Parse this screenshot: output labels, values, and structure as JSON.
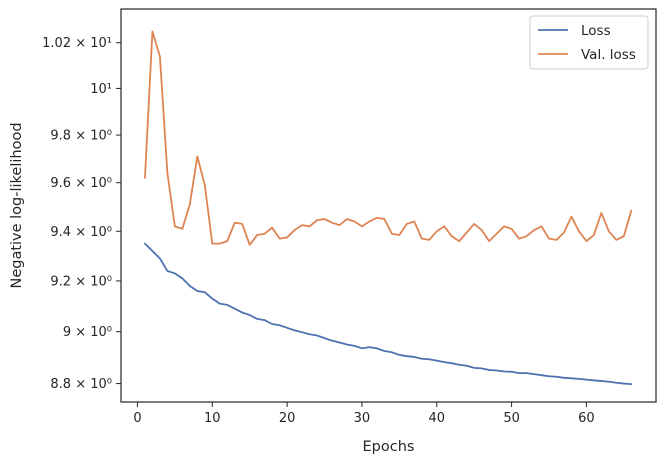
{
  "chart_data": {
    "type": "line",
    "xlabel": "Epochs",
    "ylabel": "Negative log-likelihood",
    "xlim": [
      -2.2,
      69.3
    ],
    "ylim": [
      8.73,
      10.35
    ],
    "y_scale": "log",
    "grid": false,
    "legend_position": "top-right",
    "x_ticks": [
      0,
      10,
      20,
      30,
      40,
      50,
      60
    ],
    "x_tick_labels": [
      "0",
      "10",
      "20",
      "30",
      "40",
      "50",
      "60"
    ],
    "y_ticks": [
      8.8,
      9.0,
      9.2,
      9.4,
      9.6,
      9.8,
      10.0,
      10.2
    ],
    "y_tick_labels": [
      "8.8 × 10⁰",
      "9 × 10⁰",
      "9.2 × 10⁰",
      "9.4 × 10⁰",
      "9.6 × 10⁰",
      "9.8 × 10⁰",
      "10¹",
      "1.02 × 10¹"
    ],
    "series": [
      {
        "name": "Loss",
        "color": "#4c72b0",
        "x": [
          1,
          2,
          3,
          4,
          5,
          6,
          7,
          8,
          9,
          10,
          11,
          12,
          13,
          14,
          15,
          16,
          17,
          18,
          19,
          20,
          21,
          22,
          23,
          24,
          25,
          26,
          27,
          28,
          29,
          30,
          31,
          32,
          33,
          34,
          35,
          36,
          37,
          38,
          39,
          40,
          41,
          42,
          43,
          44,
          45,
          46,
          47,
          48,
          49,
          50,
          51,
          52,
          53,
          54,
          55,
          56,
          57,
          58,
          59,
          60,
          61,
          62,
          63,
          64,
          65,
          66
        ],
        "values": [
          9.35,
          9.32,
          9.29,
          9.24,
          9.23,
          9.21,
          9.18,
          9.16,
          9.155,
          9.13,
          9.11,
          9.105,
          9.09,
          9.075,
          9.065,
          9.05,
          9.045,
          9.03,
          9.025,
          9.015,
          9.005,
          8.998,
          8.99,
          8.985,
          8.975,
          8.965,
          8.958,
          8.95,
          8.945,
          8.935,
          8.94,
          8.935,
          8.925,
          8.92,
          8.91,
          8.905,
          8.902,
          8.895,
          8.893,
          8.888,
          8.882,
          8.878,
          8.872,
          8.868,
          8.86,
          8.858,
          8.852,
          8.85,
          8.846,
          8.845,
          8.84,
          8.84,
          8.836,
          8.832,
          8.828,
          8.826,
          8.822,
          8.82,
          8.818,
          8.815,
          8.812,
          8.81,
          8.807,
          8.803,
          8.8,
          8.798
        ]
      },
      {
        "name": "Val. loss",
        "color": "#dd8452",
        "x": [
          1,
          2,
          3,
          4,
          5,
          6,
          7,
          8,
          9,
          10,
          11,
          12,
          13,
          14,
          15,
          16,
          17,
          18,
          19,
          20,
          21,
          22,
          23,
          24,
          25,
          26,
          27,
          28,
          29,
          30,
          31,
          32,
          33,
          34,
          35,
          36,
          37,
          38,
          39,
          40,
          41,
          42,
          43,
          44,
          45,
          46,
          47,
          48,
          49,
          50,
          51,
          52,
          53,
          54,
          55,
          56,
          57,
          58,
          59,
          60,
          61,
          62,
          63,
          64,
          65,
          66
        ],
        "values": [
          9.62,
          10.25,
          10.14,
          9.64,
          9.42,
          9.41,
          9.51,
          9.71,
          9.59,
          9.35,
          9.35,
          9.36,
          9.435,
          9.43,
          9.345,
          9.385,
          9.39,
          9.415,
          9.37,
          9.375,
          9.405,
          9.425,
          9.42,
          9.445,
          9.45,
          9.435,
          9.425,
          9.45,
          9.44,
          9.42,
          9.44,
          9.455,
          9.45,
          9.39,
          9.385,
          9.43,
          9.44,
          9.37,
          9.365,
          9.4,
          9.42,
          9.38,
          9.36,
          9.395,
          9.43,
          9.405,
          9.36,
          9.39,
          9.42,
          9.41,
          9.37,
          9.38,
          9.405,
          9.42,
          9.37,
          9.365,
          9.395,
          9.46,
          9.4,
          9.36,
          9.385,
          9.475,
          9.4,
          9.365,
          9.38,
          9.485
        ]
      }
    ]
  }
}
